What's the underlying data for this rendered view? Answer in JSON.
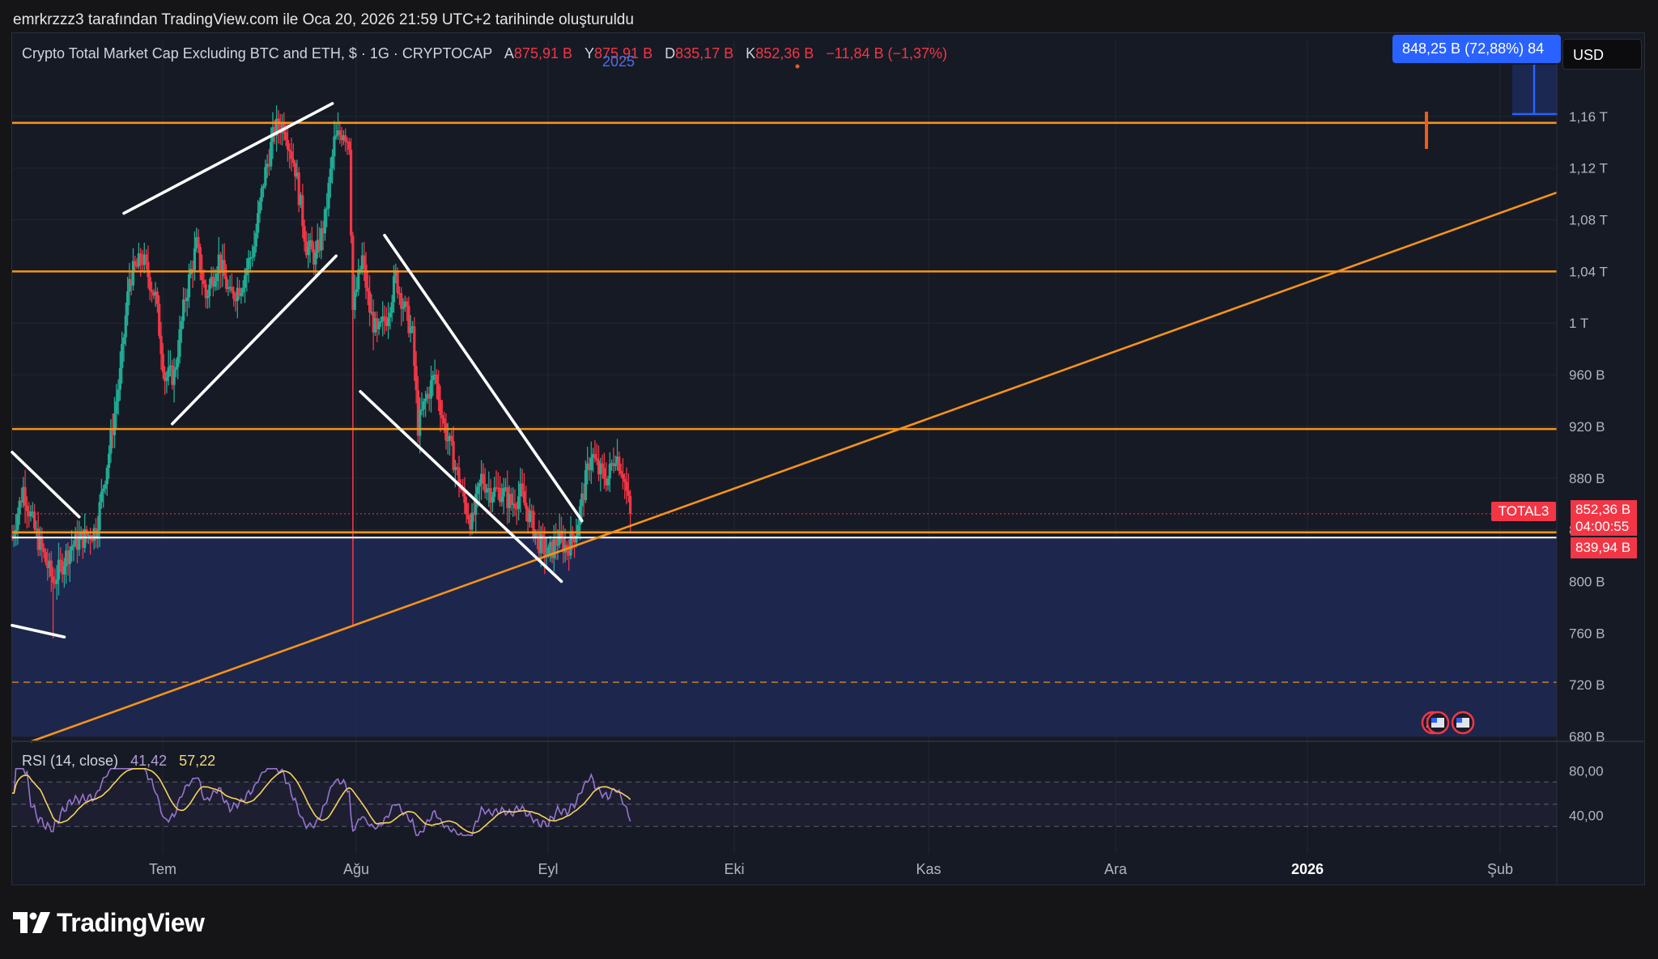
{
  "header": {
    "caption": "emrkrzzz3 tarafından TradingView.com ile Oca 20, 2026 21:59 UTC+2 tarihinde oluşturuldu"
  },
  "legend": {
    "symbol": "Crypto Total Market Cap Excluding BTC and ETH, $ · 1G · CRYPTOCAP",
    "open_label": "A",
    "open": "875,91 B",
    "high_label": "Y",
    "high": "875,91 B",
    "low_label": "D",
    "low": "835,17 B",
    "close_label": "K",
    "close": "852,36 B",
    "change": "−11,84 B (−1,37%)"
  },
  "year_marker": "2025",
  "toolbar": {
    "currency_label": "USD"
  },
  "measure_badge": "848,25 B (72,88%) 84",
  "price_tags": {
    "symbol_tag": "TOTAL3",
    "last_price": "852,36 B",
    "countdown": "04:00:55",
    "level_price": "839,94 B"
  },
  "rsi": {
    "label": "RSI (14, close)",
    "value": "41,42",
    "ma": "57,22",
    "axis_labels": [
      "80,00",
      "40,00"
    ]
  },
  "brand": {
    "name": "TradingView"
  },
  "colors": {
    "up": "#22ab94",
    "down": "#f23645",
    "level": "#f7931a",
    "trendline": "#ffffff",
    "rsi": "#9575cd",
    "rsi_ma": "#f5d35b",
    "zone": "#1e2a55",
    "badge": "#2962ff"
  },
  "chart_data": {
    "type": "candlestick",
    "y_axis": {
      "min": 680,
      "max": 1200,
      "unit": "B",
      "ticks": [
        "1,16 T",
        "1,12 T",
        "1,08 T",
        "1,04 T",
        "1 T",
        "960 B",
        "920 B",
        "880 B",
        "840 B",
        "800 B",
        "760 B",
        "720 B",
        "680 B"
      ]
    },
    "x_axis": {
      "labels": [
        "Tem",
        "Ağu",
        "Eyl",
        "Eki",
        "Kas",
        "Ara",
        "2026",
        "Şub"
      ]
    },
    "anchors": [
      {
        "d": 0,
        "p": 835
      },
      {
        "d": 6,
        "p": 872
      },
      {
        "d": 12,
        "p": 840
      },
      {
        "d": 22,
        "p": 800
      },
      {
        "d": 32,
        "p": 828
      },
      {
        "d": 45,
        "p": 840
      },
      {
        "d": 52,
        "p": 900
      },
      {
        "d": 58,
        "p": 960
      },
      {
        "d": 63,
        "p": 1035
      },
      {
        "d": 70,
        "p": 1050
      },
      {
        "d": 77,
        "p": 1020
      },
      {
        "d": 82,
        "p": 958
      },
      {
        "d": 87,
        "p": 960
      },
      {
        "d": 93,
        "p": 1020
      },
      {
        "d": 99,
        "p": 1060
      },
      {
        "d": 104,
        "p": 1020
      },
      {
        "d": 111,
        "p": 1050
      },
      {
        "d": 117,
        "p": 1020
      },
      {
        "d": 123,
        "p": 1030
      },
      {
        "d": 130,
        "p": 1060
      },
      {
        "d": 135,
        "p": 1110
      },
      {
        "d": 141,
        "p": 1150
      },
      {
        "d": 146,
        "p": 1155
      },
      {
        "d": 152,
        "p": 1120
      },
      {
        "d": 158,
        "p": 1060
      },
      {
        "d": 163,
        "p": 1050
      },
      {
        "d": 168,
        "p": 1080
      },
      {
        "d": 173,
        "p": 1140
      },
      {
        "d": 178,
        "p": 1150
      },
      {
        "d": 181,
        "p": 1140
      },
      {
        "d": 183,
        "p": 1010
      },
      {
        "d": 188,
        "p": 1050
      },
      {
        "d": 192,
        "p": 1010
      },
      {
        "d": 196,
        "p": 990
      },
      {
        "d": 201,
        "p": 1005
      },
      {
        "d": 206,
        "p": 1035
      },
      {
        "d": 211,
        "p": 1010
      },
      {
        "d": 215,
        "p": 990
      },
      {
        "d": 218,
        "p": 920
      },
      {
        "d": 222,
        "p": 940
      },
      {
        "d": 227,
        "p": 960
      },
      {
        "d": 232,
        "p": 920
      },
      {
        "d": 237,
        "p": 895
      },
      {
        "d": 243,
        "p": 860
      },
      {
        "d": 247,
        "p": 845
      },
      {
        "d": 252,
        "p": 880
      },
      {
        "d": 257,
        "p": 870
      },
      {
        "d": 263,
        "p": 870
      },
      {
        "d": 268,
        "p": 860
      },
      {
        "d": 273,
        "p": 868
      },
      {
        "d": 278,
        "p": 850
      },
      {
        "d": 283,
        "p": 830
      },
      {
        "d": 288,
        "p": 820
      },
      {
        "d": 293,
        "p": 833
      },
      {
        "d": 298,
        "p": 826
      },
      {
        "d": 303,
        "p": 840
      },
      {
        "d": 307,
        "p": 870
      },
      {
        "d": 311,
        "p": 900
      },
      {
        "d": 315,
        "p": 885
      },
      {
        "d": 320,
        "p": 880
      },
      {
        "d": 324,
        "p": 900
      },
      {
        "d": 328,
        "p": 885
      },
      {
        "d": 332,
        "p": 852
      }
    ],
    "horizontal_levels": [
      1155,
      1040,
      918,
      838
    ],
    "reference_levels": [
      834,
      852.36
    ],
    "dashed_level": 722,
    "ascending_support": [
      {
        "d": 10,
        "p": 676
      },
      {
        "d": 332,
        "p": 843
      }
    ],
    "channel_lines": [
      [
        {
          "d": 60,
          "p": 1085
        },
        {
          "d": 172,
          "p": 1170
        }
      ],
      [
        {
          "d": 86,
          "p": 922
        },
        {
          "d": 174,
          "p": 1052
        }
      ],
      [
        {
          "d": 200,
          "p": 1068
        },
        {
          "d": 306,
          "p": 847
        }
      ],
      [
        {
          "d": 187,
          "p": 947
        },
        {
          "d": 295,
          "p": 800
        }
      ],
      [
        {
          "d": 0,
          "p": 900
        },
        {
          "d": 36,
          "p": 850
        }
      ],
      [
        {
          "d": 0,
          "p": 766
        },
        {
          "d": 28,
          "p": 757
        }
      ]
    ],
    "rsi_series_note": "",
    "rsi_levels": [
      70,
      50,
      30
    ]
  }
}
